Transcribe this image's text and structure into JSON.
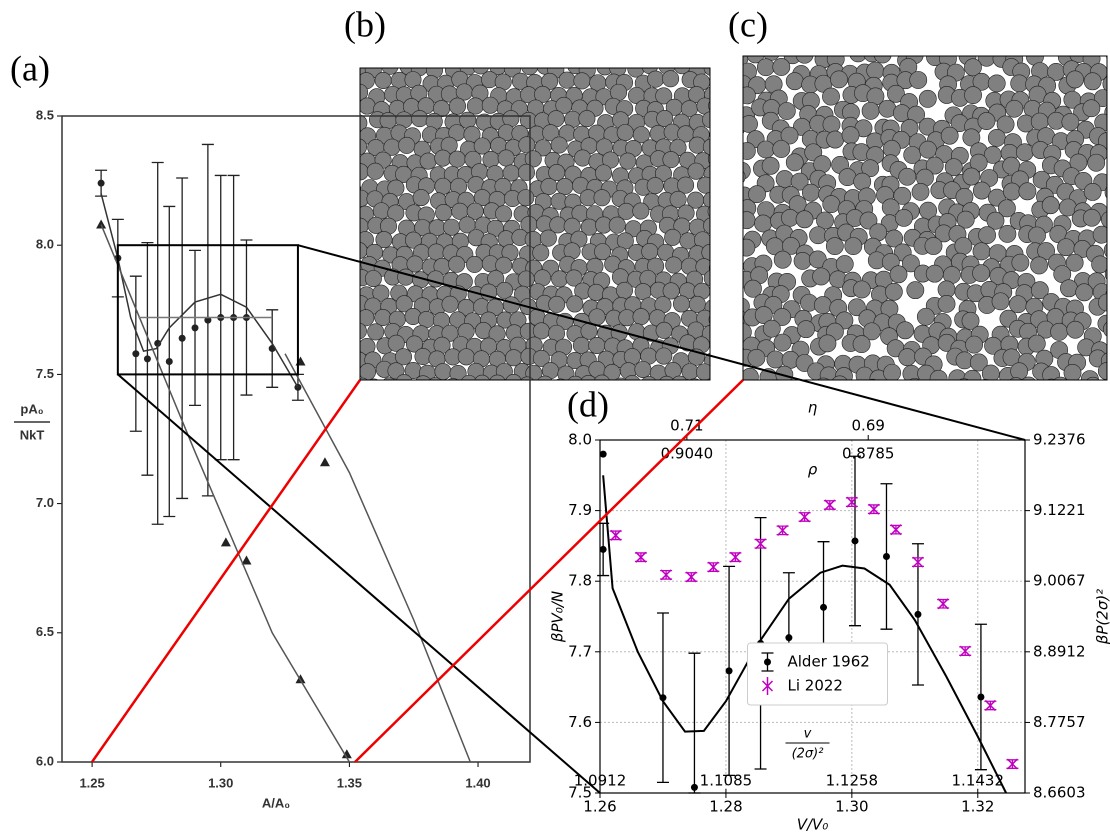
{
  "chart_data": [
    {
      "type": "scatter",
      "label": "(a)",
      "x_label": "A/A₀",
      "y_label": [
        "pA₀",
        "NkT"
      ],
      "xlim": [
        1.2383,
        1.4202
      ],
      "ylim": [
        6.0,
        8.5
      ],
      "xticks": [
        1.25,
        {
          "value": 1.3,
          "label": "1.30"
        },
        1.35,
        {
          "value": 1.4,
          "label": "1.40"
        }
      ],
      "yticks": [
        {
          "value": 6,
          "label": "6.0"
        },
        6.5,
        {
          "value": 7,
          "label": "7.0"
        },
        7.5,
        {
          "value": 8,
          "label": "8.0"
        },
        8.5
      ],
      "zoom_box": {
        "x": [
          1.26,
          1.33
        ],
        "y": [
          7.5,
          8.0
        ]
      },
      "series": [
        {
          "marker": "dot",
          "color": "#222222",
          "x": [
            1.2535,
            1.26,
            1.267,
            1.2715,
            1.2755,
            1.28,
            1.285,
            1.29,
            1.295,
            1.3,
            1.305,
            1.31,
            1.32,
            1.33
          ],
          "values": [
            8.24,
            7.95,
            7.58,
            7.56,
            7.62,
            7.55,
            7.64,
            7.68,
            7.71,
            7.72,
            7.72,
            7.72,
            7.6,
            7.45
          ],
          "errors": [
            0.05,
            0.15,
            0.3,
            0.45,
            0.7,
            0.6,
            0.62,
            0.3,
            0.68,
            0.55,
            0.55,
            0.3,
            0.15,
            0.05
          ]
        },
        {
          "marker": "triangle",
          "color": "#222222",
          "x": [
            1.2535,
            1.302,
            1.31,
            1.331,
            1.349,
            1.331,
            1.3405
          ],
          "values": [
            8.08,
            6.85,
            6.78,
            6.32,
            6.03,
            7.55,
            7.16
          ]
        },
        {
          "marker": "line",
          "color": "#333333",
          "x": [
            1.2535,
            1.26,
            1.265,
            1.27,
            1.275,
            1.28,
            1.29,
            1.3,
            1.31,
            1.32,
            1.33
          ],
          "values": [
            8.2,
            7.95,
            7.72,
            7.59,
            7.6,
            7.68,
            7.78,
            7.81,
            7.76,
            7.62,
            7.45
          ]
        },
        {
          "marker": "line",
          "color": "#555555",
          "x": [
            1.2535,
            1.29,
            1.32,
            1.35
          ],
          "values": [
            8.08,
            7.2,
            6.5,
            6.0
          ]
        },
        {
          "marker": "line",
          "color": "#555555",
          "x": [
            1.325,
            1.35,
            1.375,
            1.397
          ],
          "values": [
            7.58,
            7.12,
            6.55,
            6.0
          ]
        },
        {
          "marker": "line",
          "color": "#777777",
          "x": [
            1.268,
            1.32
          ],
          "values": [
            7.72,
            7.72
          ]
        }
      ]
    },
    {
      "type": "scatter",
      "label": "(d)",
      "x_label": "V/V₀",
      "y_label": "βPV₀/N",
      "y2_label": "βP(2σ)²",
      "top_label": "η",
      "inner_top_label": "ρ",
      "inner_bottom_label": [
        "v",
        "(2σ)²"
      ],
      "xlim": [
        1.26,
        1.3275
      ],
      "ylim": [
        7.5,
        8.0
      ],
      "y2lim": [
        8.6603,
        9.2376
      ],
      "grid": true,
      "legend": "lower center",
      "xticks": [
        1.26,
        1.28,
        {
          "value": 1.3,
          "label": "1.30"
        },
        1.32
      ],
      "yticks": [
        {
          "value": 7.5,
          "label": "7.5"
        },
        7.6,
        7.7,
        7.8,
        7.9,
        {
          "value": 8,
          "label": "8.0"
        }
      ],
      "y2ticks": [
        8.6603,
        8.7757,
        8.8912,
        9.0067,
        9.1221,
        9.2376
      ],
      "top_ticks": [
        {
          "value": 1.2738,
          "label": "0.71"
        },
        {
          "value": 1.3026,
          "label": "0.69"
        }
      ],
      "inner_top_ticks": [
        {
          "value": 1.2738,
          "label": "0.9040"
        },
        {
          "value": 1.3026,
          "label": "0.8785"
        }
      ],
      "inner_bottom_ticks": [
        {
          "value": 1.26,
          "label": "1.0912"
        },
        {
          "value": 1.28,
          "label": "1.1085"
        },
        {
          "value": 1.3,
          "label": "1.1258"
        },
        {
          "value": 1.32,
          "label": "1.1432"
        }
      ],
      "series": [
        {
          "name": "Alder 1962",
          "marker": "dot",
          "color": "#000000",
          "x": [
            1.2605,
            1.2605,
            1.27,
            1.275,
            1.2805,
            1.2855,
            1.29,
            1.2955,
            1.3005,
            1.3055,
            1.3105,
            1.3205
          ],
          "values": [
            7.98,
            7.845,
            7.635,
            7.508,
            7.673,
            7.712,
            7.72,
            7.763,
            7.857,
            7.835,
            7.753,
            7.636
          ],
          "errors": [
            0.0,
            0.037,
            0.12,
            0.19,
            0.148,
            0.178,
            0.092,
            0.093,
            0.12,
            0.103,
            0.1,
            0.103
          ]
        },
        {
          "name": "Li 2022",
          "marker": "x",
          "color": "#c000c0",
          "x": [
            1.2625,
            1.2665,
            1.2705,
            1.2745,
            1.278,
            1.2815,
            1.2855,
            1.289,
            1.2925,
            1.2965,
            1.3,
            1.3035,
            1.307,
            1.3105,
            1.3145,
            1.318,
            1.322,
            1.3255
          ],
          "values": [
            7.865,
            7.834,
            7.809,
            7.806,
            7.82,
            7.834,
            7.853,
            7.872,
            7.891,
            7.908,
            7.912,
            7.902,
            7.873,
            7.827,
            7.768,
            7.701,
            7.624,
            7.541
          ],
          "errors": [
            0.006,
            0.006,
            0.006,
            0.006,
            0.006,
            0.006,
            0.006,
            0.006,
            0.006,
            0.006,
            0.006,
            0.006,
            0.006,
            0.006,
            0.006,
            0.006,
            0.006,
            0.006
          ]
        },
        {
          "marker": "line",
          "color": "#000000",
          "x": [
            1.2605,
            1.262,
            1.266,
            1.27,
            1.2735,
            1.2765,
            1.28,
            1.285,
            1.29,
            1.295,
            1.2985,
            1.302,
            1.306,
            1.31,
            1.315,
            1.32,
            1.3245
          ],
          "values": [
            7.95,
            7.79,
            7.7,
            7.63,
            7.587,
            7.588,
            7.63,
            7.71,
            7.775,
            7.812,
            7.822,
            7.818,
            7.795,
            7.745,
            7.665,
            7.58,
            7.5
          ]
        }
      ]
    }
  ],
  "snapshots": [
    {
      "label": "(b)"
    },
    {
      "label": "(c)"
    }
  ]
}
